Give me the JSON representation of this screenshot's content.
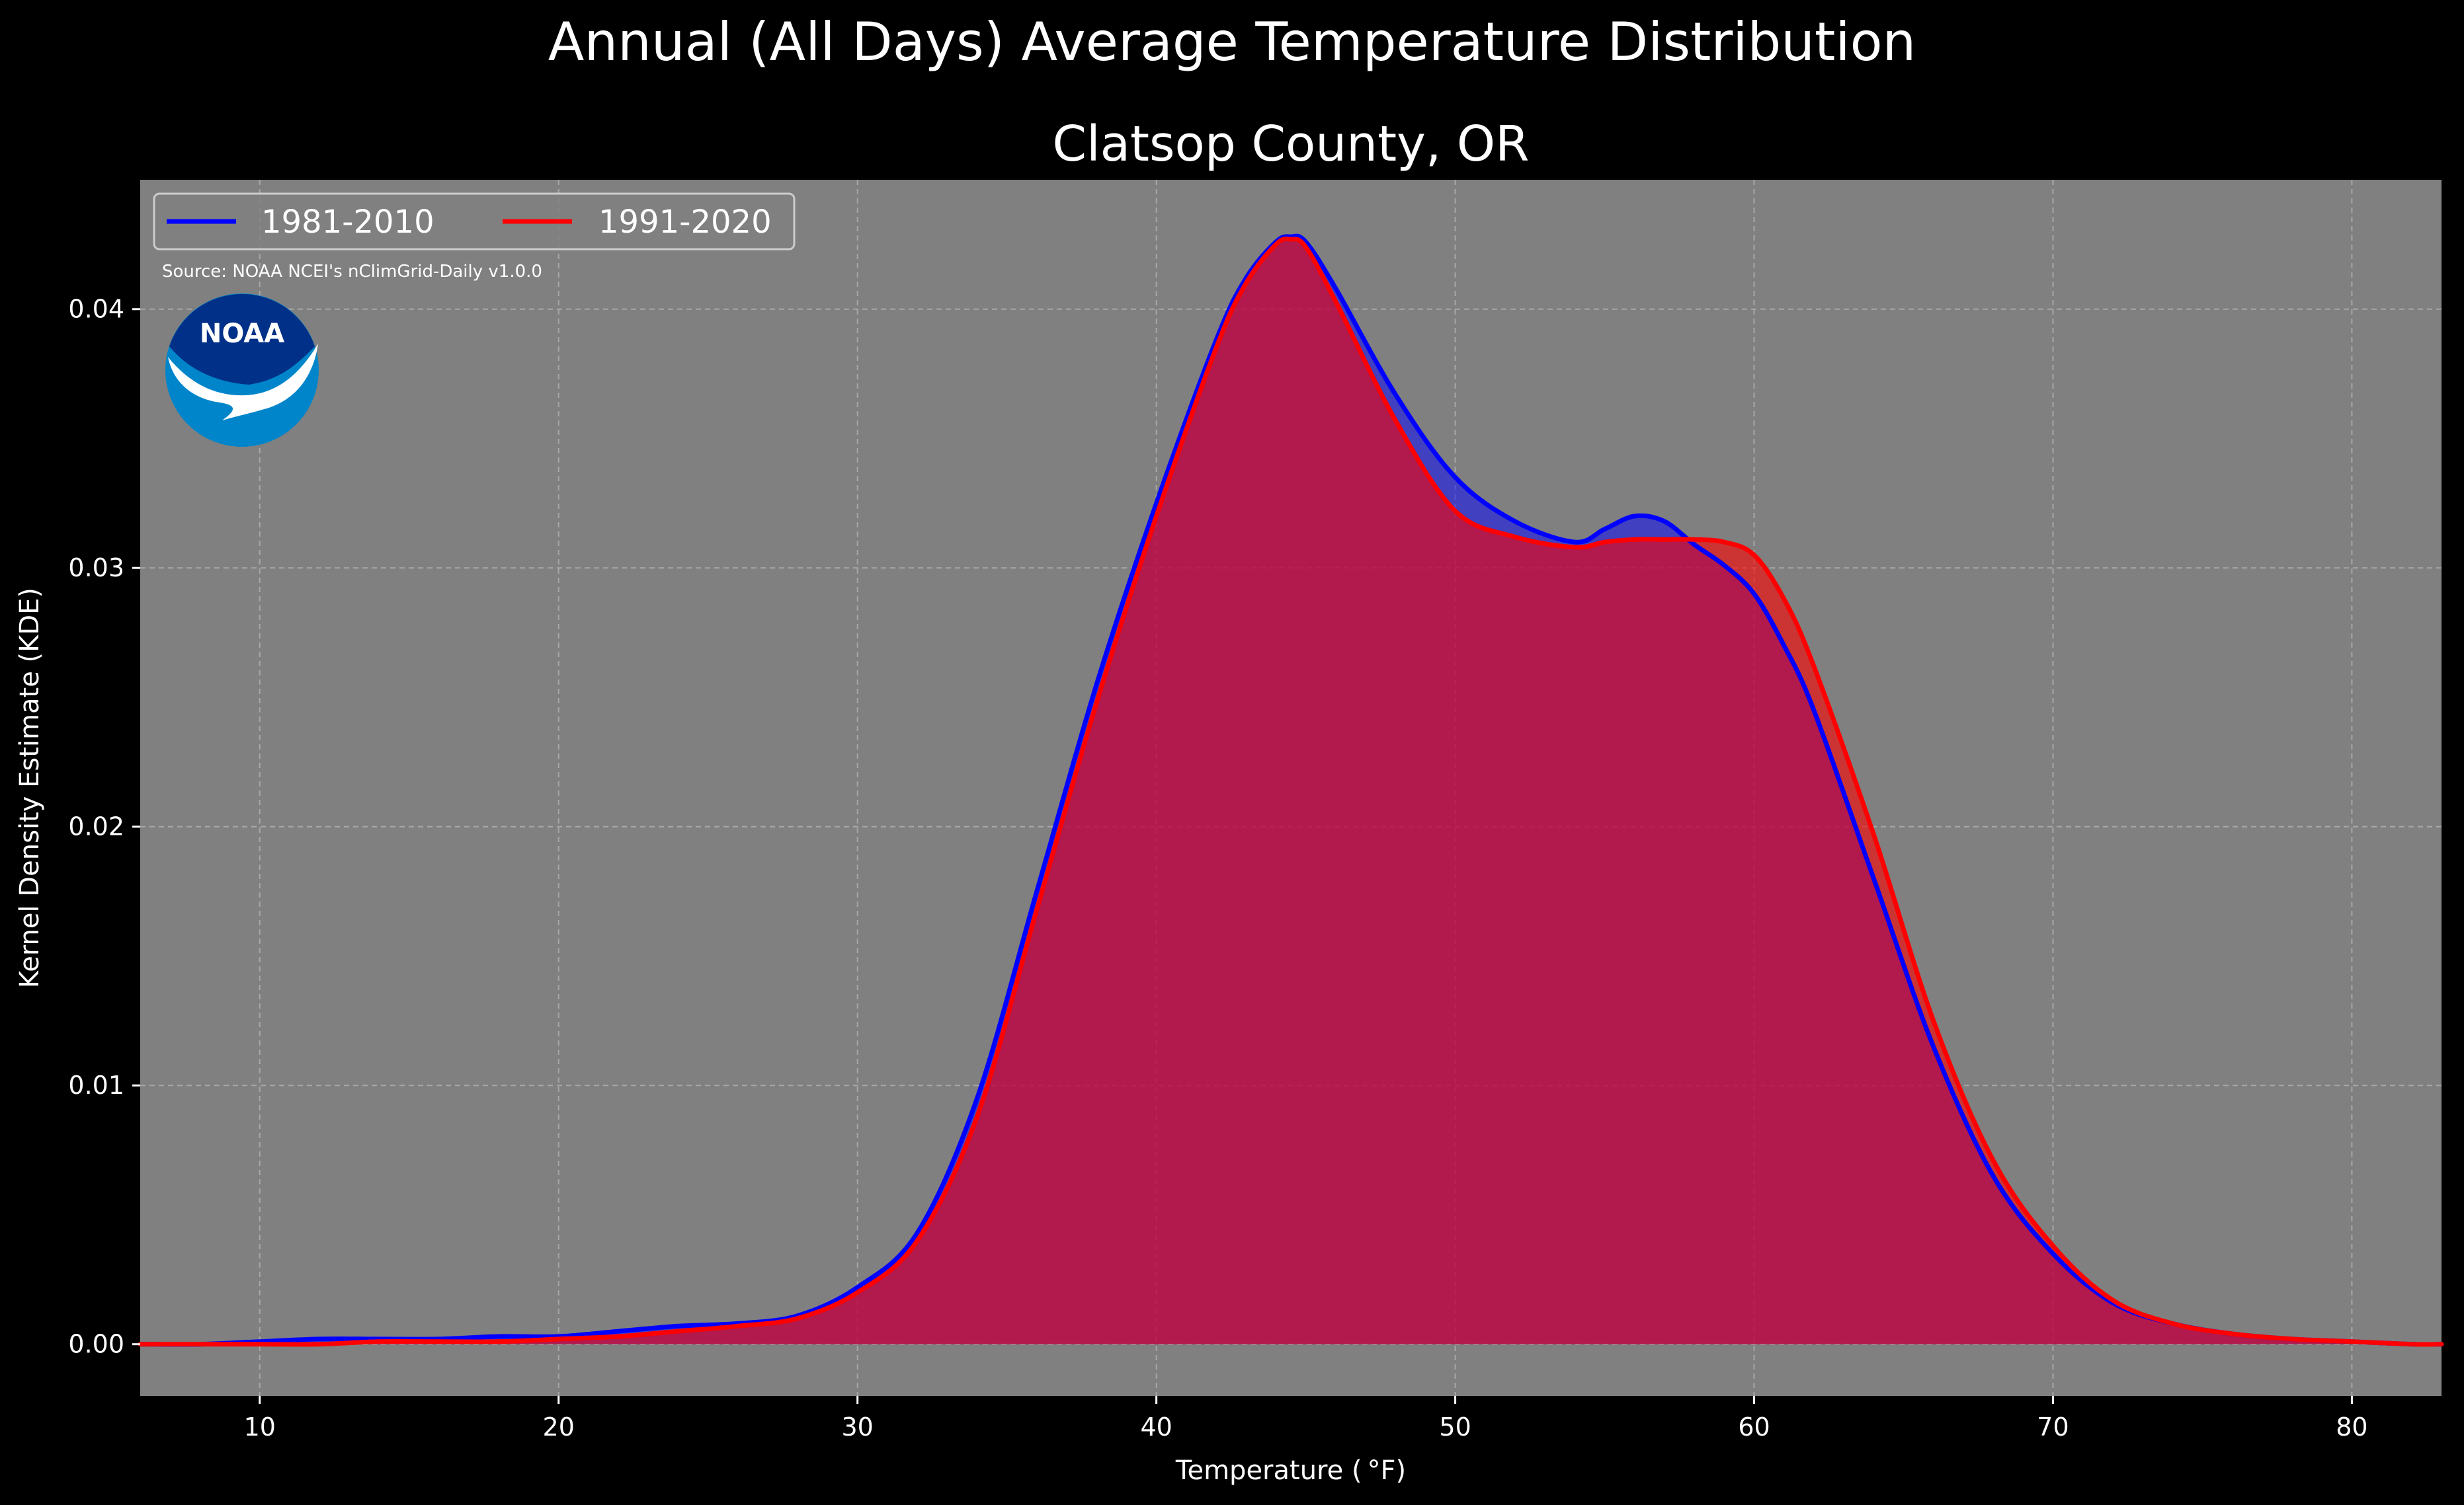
{
  "figure": {
    "suptitle": "Annual (All Days) Average Temperature Distribution",
    "source_note": "Source: NOAA NCEI's nClimGrid-Daily v1.0.0",
    "logo_text": "NOAA"
  },
  "colors": {
    "background": "#000000",
    "plot_background": "#808080",
    "grid": "#b8b8b8",
    "series_1981_2010": "#0000ff",
    "series_1991_2020": "#ff0000",
    "overlap_fill": "#9c1f5c",
    "logo_dark": "#003087",
    "logo_light": "#0085ca"
  },
  "chart_data": {
    "type": "area",
    "title": "Clatsop County, OR",
    "xlabel": "Temperature ($^\\circ$F)",
    "ylabel": "Kernel Density Estimate (KDE)",
    "xlim": [
      6,
      83
    ],
    "ylim": [
      -0.002,
      0.045
    ],
    "xticks": [
      10,
      20,
      30,
      40,
      50,
      60,
      70,
      80
    ],
    "yticks": [
      0.0,
      0.01,
      0.02,
      0.03,
      0.04
    ],
    "xtick_labels": [
      "10",
      "20",
      "30",
      "40",
      "50",
      "60",
      "70",
      "80"
    ],
    "ytick_labels": [
      "0.00",
      "0.01",
      "0.02",
      "0.03",
      "0.04"
    ],
    "grid": true,
    "legend": {
      "placement": "upper-left",
      "ncol": 2
    },
    "x": [
      6,
      8,
      10,
      12,
      14,
      16,
      18,
      20,
      22,
      24,
      26,
      28,
      30,
      32,
      34,
      36,
      38,
      40,
      42,
      43,
      44,
      44.5,
      45,
      46,
      48,
      50,
      52,
      54,
      55,
      56,
      57,
      58,
      59,
      60,
      61,
      62,
      64,
      66,
      68,
      70,
      72,
      74,
      76,
      78,
      80,
      82,
      83
    ],
    "series": [
      {
        "name": "1981-2010",
        "color": "#0000ff",
        "values": [
          0.0,
          0.0,
          0.0001,
          0.0002,
          0.0002,
          0.0002,
          0.0003,
          0.0003,
          0.0005,
          0.0007,
          0.0008,
          0.0011,
          0.0022,
          0.0043,
          0.0095,
          0.0175,
          0.0255,
          0.0325,
          0.0388,
          0.0412,
          0.0426,
          0.0428,
          0.0426,
          0.0408,
          0.0367,
          0.0335,
          0.0318,
          0.031,
          0.0315,
          0.032,
          0.0318,
          0.0309,
          0.0301,
          0.029,
          0.027,
          0.0245,
          0.018,
          0.0115,
          0.0065,
          0.0035,
          0.0016,
          0.0008,
          0.0004,
          0.0002,
          0.0001,
          0.0,
          0.0
        ]
      },
      {
        "name": "1991-2020",
        "color": "#ff0000",
        "values": [
          0.0,
          0.0,
          0.0,
          0.0,
          0.0001,
          0.0001,
          0.0001,
          0.0002,
          0.0003,
          0.0005,
          0.0007,
          0.001,
          0.002,
          0.004,
          0.0088,
          0.0168,
          0.0248,
          0.032,
          0.0385,
          0.041,
          0.0425,
          0.0427,
          0.0424,
          0.0403,
          0.0357,
          0.0322,
          0.0312,
          0.0308,
          0.031,
          0.0311,
          0.0311,
          0.0311,
          0.031,
          0.0305,
          0.0288,
          0.0262,
          0.0197,
          0.0125,
          0.0071,
          0.0038,
          0.0017,
          0.0008,
          0.0004,
          0.0002,
          0.0001,
          0.0,
          0.0
        ]
      }
    ]
  }
}
